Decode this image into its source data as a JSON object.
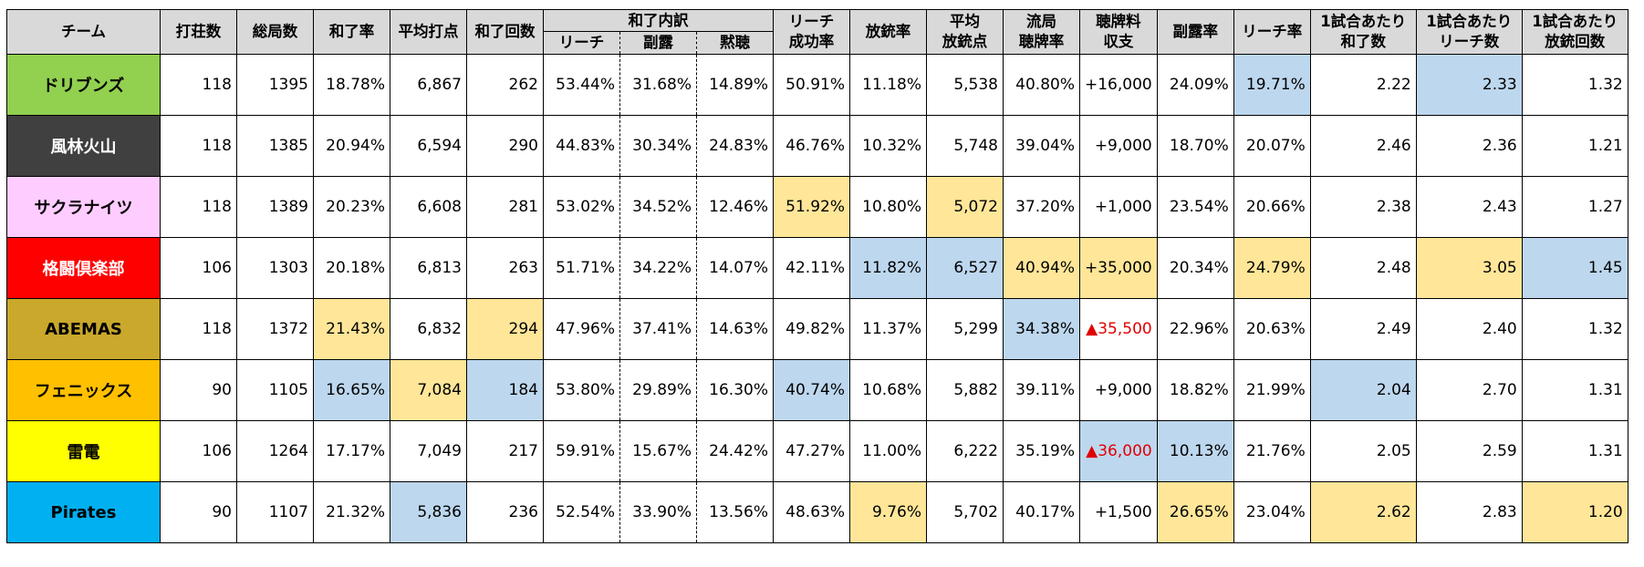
{
  "colors": {
    "header_bg": "#d9d9d9",
    "highlight_high": "#ffe699",
    "highlight_low": "#bdd7ee",
    "negative_text": "#e00000"
  },
  "header": {
    "team": "チーム",
    "hanchan": "打荘数",
    "total_rounds": "総局数",
    "win_rate": "和了率",
    "avg_win_points": "平均打点",
    "win_count": "和了回数",
    "win_breakdown": "和了内訳",
    "riichi": "リーチ",
    "open": "副露",
    "dama": "黙聴",
    "riichi_success": "リーチ\n成功率",
    "deal_in_rate": "放銃率",
    "avg_deal_in": "平均\n放銃点",
    "ryukyoku_tenpai": "流局\n聴牌率",
    "noten_balance": "聴牌料\n収支",
    "open_rate": "副露率",
    "riichi_rate": "リーチ率",
    "wins_per_game": "1試合あたり\n和了数",
    "riichi_per_game": "1試合あたり\nリーチ数",
    "deal_ins_per_game": "1試合あたり\n放銃回数"
  },
  "teams": [
    {
      "name": "ドリブンズ",
      "color": "#92d050",
      "text_color": "#000000",
      "values": [
        "118",
        "1395",
        "18.78%",
        "6,867",
        "262",
        "53.44%",
        "31.68%",
        "14.89%",
        "50.91%",
        "11.18%",
        "5,538",
        "40.80%",
        "+16,000",
        "24.09%",
        "19.71%",
        "2.22",
        "2.33",
        "1.32"
      ],
      "hl": {
        "14": "low",
        "16": "low"
      }
    },
    {
      "name": "風林火山",
      "color": "#404040",
      "text_color": "#ffffff",
      "values": [
        "118",
        "1385",
        "20.94%",
        "6,594",
        "290",
        "44.83%",
        "30.34%",
        "24.83%",
        "46.76%",
        "10.32%",
        "5,748",
        "39.04%",
        "+9,000",
        "18.70%",
        "20.07%",
        "2.46",
        "2.36",
        "1.21"
      ],
      "hl": {}
    },
    {
      "name": "サクラナイツ",
      "color": "#ffccff",
      "text_color": "#000000",
      "values": [
        "118",
        "1389",
        "20.23%",
        "6,608",
        "281",
        "53.02%",
        "34.52%",
        "12.46%",
        "51.92%",
        "10.80%",
        "5,072",
        "37.20%",
        "+1,000",
        "23.54%",
        "20.66%",
        "2.38",
        "2.43",
        "1.27"
      ],
      "hl": {
        "8": "high",
        "10": "high"
      }
    },
    {
      "name": "格闘倶楽部",
      "color": "#ff0000",
      "text_color": "#ffffff",
      "values": [
        "106",
        "1303",
        "20.18%",
        "6,813",
        "263",
        "51.71%",
        "34.22%",
        "14.07%",
        "42.11%",
        "11.82%",
        "6,527",
        "40.94%",
        "+35,000",
        "20.34%",
        "24.79%",
        "2.48",
        "3.05",
        "1.45"
      ],
      "hl": {
        "9": "low",
        "10": "low",
        "11": "high",
        "12": "high",
        "14": "high",
        "16": "high",
        "17": "low"
      }
    },
    {
      "name": "ABEMAS",
      "color": "#c9a82c",
      "text_color": "#000000",
      "values": [
        "118",
        "1372",
        "21.43%",
        "6,832",
        "294",
        "47.96%",
        "37.41%",
        "14.63%",
        "49.82%",
        "11.37%",
        "5,299",
        "34.38%",
        "▲35,500",
        "22.96%",
        "20.63%",
        "2.49",
        "2.40",
        "1.32"
      ],
      "hl": {
        "2": "high",
        "4": "high",
        "11": "low"
      }
    },
    {
      "name": "フェニックス",
      "color": "#ffc000",
      "text_color": "#000000",
      "values": [
        "90",
        "1105",
        "16.65%",
        "7,084",
        "184",
        "53.80%",
        "29.89%",
        "16.30%",
        "40.74%",
        "10.68%",
        "5,882",
        "39.11%",
        "+9,000",
        "18.82%",
        "21.99%",
        "2.04",
        "2.70",
        "1.31"
      ],
      "hl": {
        "2": "low",
        "3": "high",
        "4": "low",
        "8": "low",
        "15": "low"
      }
    },
    {
      "name": "雷電",
      "color": "#ffff00",
      "text_color": "#000000",
      "values": [
        "106",
        "1264",
        "17.17%",
        "7,049",
        "217",
        "59.91%",
        "15.67%",
        "24.42%",
        "47.27%",
        "11.00%",
        "6,222",
        "35.19%",
        "▲36,000",
        "10.13%",
        "21.76%",
        "2.05",
        "2.59",
        "1.31"
      ],
      "hl": {
        "12": "low",
        "13": "low"
      }
    },
    {
      "name": "Pirates",
      "color": "#00b0f0",
      "text_color": "#000000",
      "values": [
        "90",
        "1107",
        "21.32%",
        "5,836",
        "236",
        "52.54%",
        "33.90%",
        "13.56%",
        "48.63%",
        "9.76%",
        "5,702",
        "40.17%",
        "+1,500",
        "26.65%",
        "23.04%",
        "2.62",
        "2.83",
        "1.20"
      ],
      "hl": {
        "3": "low",
        "9": "high",
        "13": "high",
        "15": "high",
        "17": "high"
      }
    }
  ]
}
